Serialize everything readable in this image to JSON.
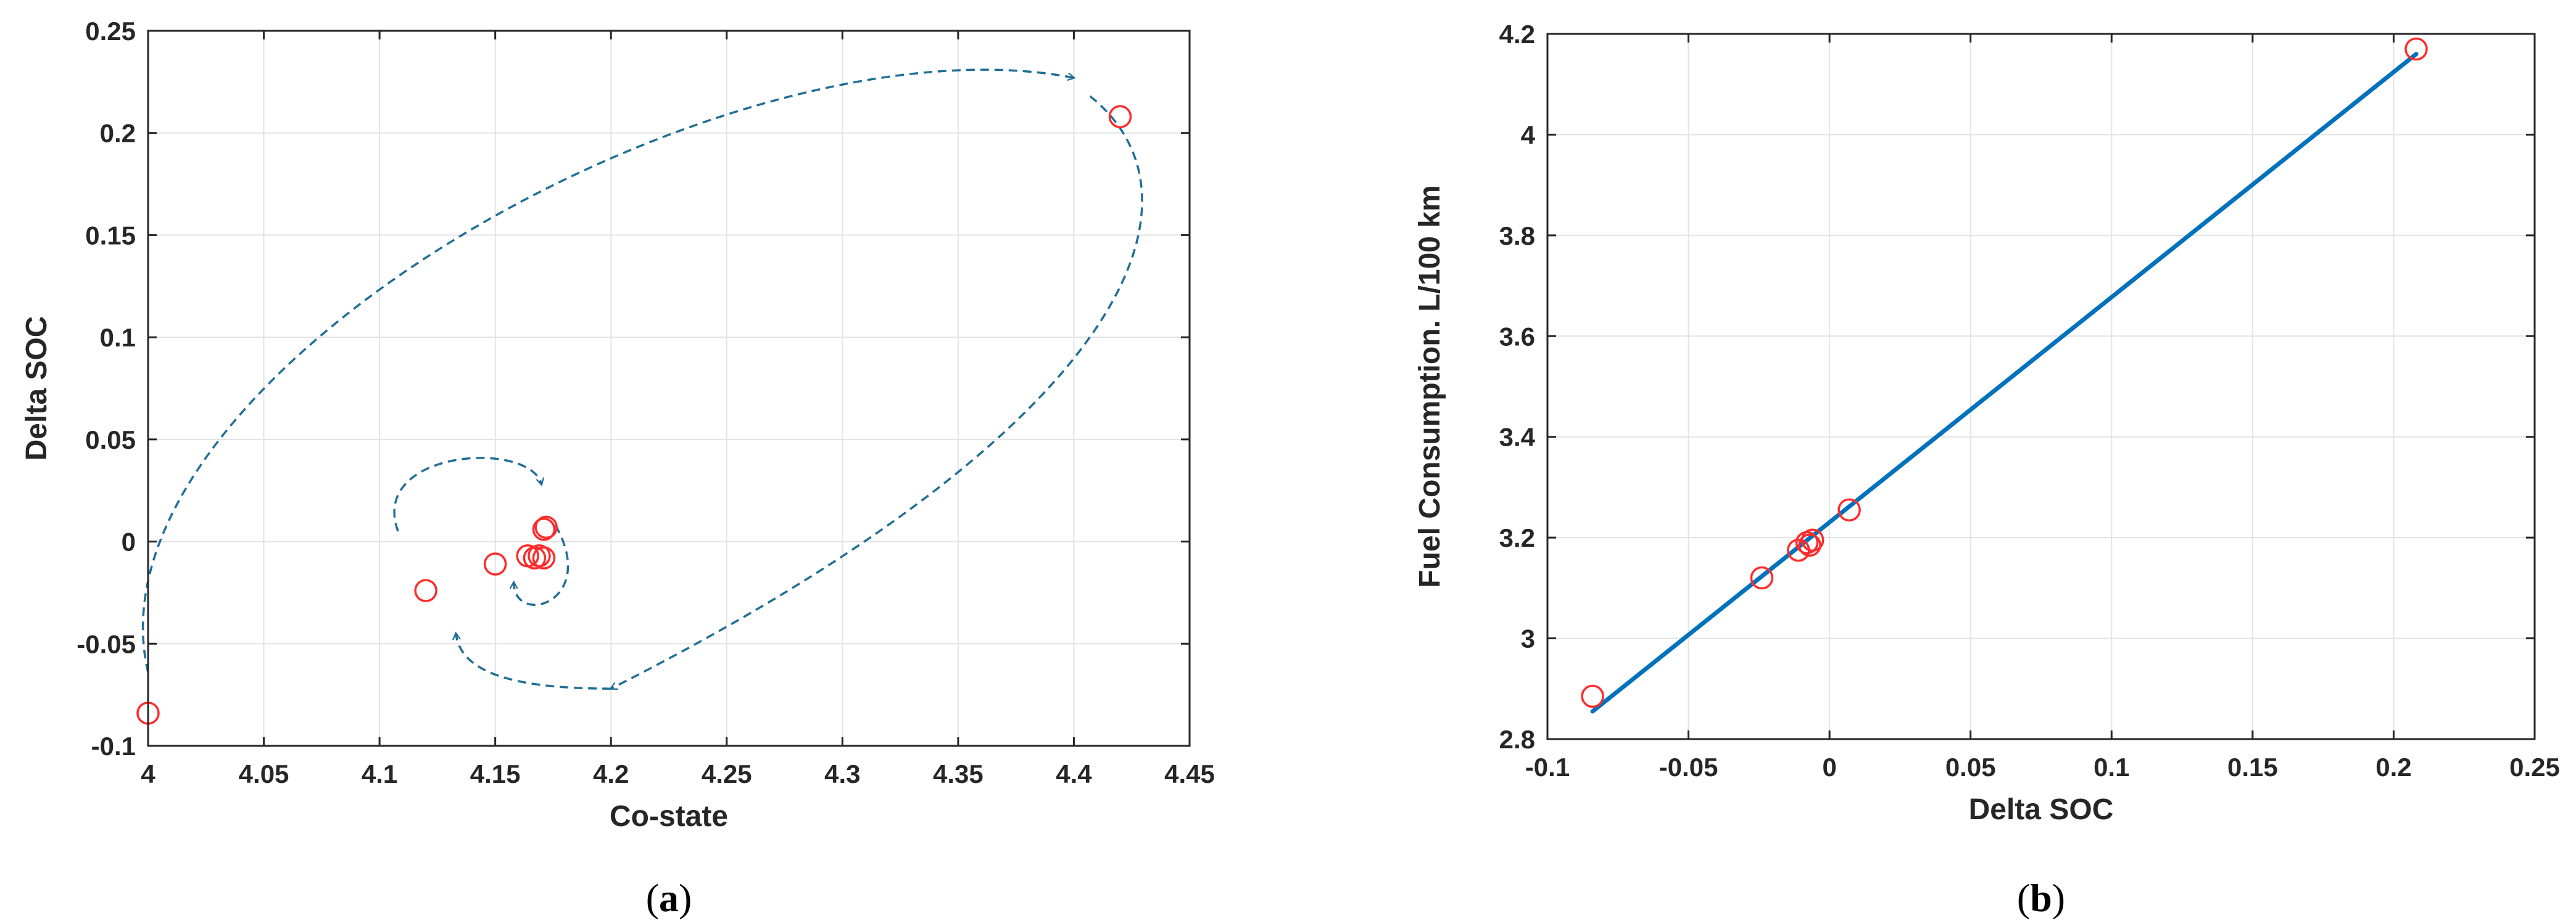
{
  "colors": {
    "marker": "#ff2b2b",
    "fit_line": "#0072bd",
    "arrow": "#1f6f96",
    "grid": "#e3e3e3",
    "axis": "#262626"
  },
  "chart_data": [
    {
      "type": "scatter",
      "panel": {
        "open": "(",
        "letter": "a",
        "close": ")"
      },
      "xlabel": "Co-state",
      "ylabel": "Delta SOC",
      "xlim": [
        4.0,
        4.45
      ],
      "ylim": [
        -0.1,
        0.25
      ],
      "xticks": [
        "4",
        "4.05",
        "4.1",
        "4.15",
        "4.2",
        "4.25",
        "4.3",
        "4.35",
        "4.4",
        "4.45"
      ],
      "yticks": [
        "-0.1",
        "-0.05",
        "0",
        "0.05",
        "0.1",
        "0.15",
        "0.2",
        "0.25"
      ],
      "grid": true,
      "marker": "open-circle",
      "points": [
        {
          "x": 4.0,
          "y": -0.084
        },
        {
          "x": 4.42,
          "y": 0.208
        },
        {
          "x": 4.12,
          "y": -0.024
        },
        {
          "x": 4.15,
          "y": -0.011
        },
        {
          "x": 4.164,
          "y": -0.007
        },
        {
          "x": 4.167,
          "y": -0.008
        },
        {
          "x": 4.169,
          "y": -0.007
        },
        {
          "x": 4.171,
          "y": -0.008
        },
        {
          "x": 4.171,
          "y": 0.006
        },
        {
          "x": 4.172,
          "y": 0.007
        }
      ],
      "annotations": "dashed spiral arrows showing the iteration path converging to about (4.17, 0)"
    },
    {
      "type": "scatter",
      "panel": {
        "open": "(",
        "letter": "b",
        "close": ")"
      },
      "xlabel": "Delta SOC",
      "ylabel": "Fuel Consumption. L/100 km",
      "xlim": [
        -0.1,
        0.25
      ],
      "ylim": [
        2.8,
        4.2
      ],
      "xticks": [
        "-0.1",
        "-0.05",
        "0",
        "0.05",
        "0.1",
        "0.15",
        "0.2",
        "0.25"
      ],
      "yticks": [
        "2.8",
        "3",
        "3.2",
        "3.4",
        "3.6",
        "3.8",
        "4",
        "4.2"
      ],
      "grid": true,
      "marker": "open-circle",
      "points": [
        {
          "x": -0.084,
          "y": 2.885
        },
        {
          "x": -0.024,
          "y": 3.12
        },
        {
          "x": -0.011,
          "y": 3.175
        },
        {
          "x": -0.008,
          "y": 3.19
        },
        {
          "x": -0.007,
          "y": 3.185
        },
        {
          "x": -0.006,
          "y": 3.195
        },
        {
          "x": 0.007,
          "y": 3.255
        },
        {
          "x": 0.208,
          "y": 4.17
        }
      ],
      "fit_line": [
        {
          "x": -0.084,
          "y": 2.855
        },
        {
          "x": 0.208,
          "y": 4.16
        }
      ]
    }
  ]
}
